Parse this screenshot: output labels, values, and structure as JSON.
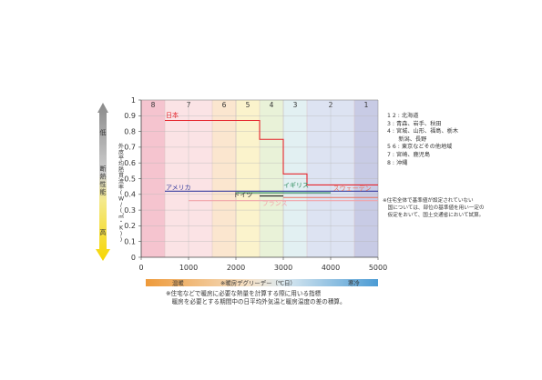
{
  "chart_data": {
    "type": "line",
    "title": "",
    "ylabel": "外皮平均熱貫流率(W/(㎡・K))",
    "y_axis_side_label_top": "低",
    "y_axis_side_label_mid": "断熱性能",
    "y_axis_side_label_bottom": "高",
    "xlabel": "※暖房デグリーデー（℃日）",
    "x_left_label": "温暖",
    "x_right_label": "寒冷",
    "xlim": [
      0,
      5000
    ],
    "ylim": [
      0,
      1
    ],
    "x_ticks": [
      "0",
      "1000",
      "2000",
      "3000",
      "4000",
      "5000"
    ],
    "y_ticks": [
      "0",
      "0.1",
      "0.2",
      "0.3",
      "0.4",
      "0.5",
      "0.6",
      "0.7",
      "0.8",
      "0.9",
      "1"
    ],
    "zones": [
      {
        "label": "8",
        "x0": 0,
        "x1": 500,
        "color": "#f5c4cf"
      },
      {
        "label": "7",
        "x0": 500,
        "x1": 1500,
        "color": "#fbe3e5"
      },
      {
        "label": "6",
        "x0": 1500,
        "x1": 2000,
        "color": "#fbe6cf"
      },
      {
        "label": "5",
        "x0": 2000,
        "x1": 2500,
        "color": "#fbf3cc"
      },
      {
        "label": "4",
        "x0": 2500,
        "x1": 3000,
        "color": "#e9f2d8"
      },
      {
        "label": "3",
        "x0": 3000,
        "x1": 3500,
        "color": "#e2f0f2"
      },
      {
        "label": "2",
        "x0": 3500,
        "x1": 4500,
        "color": "#dde3f2"
      },
      {
        "label": "1",
        "x0": 4500,
        "x1": 5000,
        "color": "#c8cbe5"
      }
    ],
    "series": [
      {
        "name": "日本",
        "color": "#e6242c",
        "points": [
          [
            500,
            0.87
          ],
          [
            2500,
            0.87
          ],
          [
            2500,
            0.75
          ],
          [
            3000,
            0.75
          ],
          [
            3000,
            0.53
          ],
          [
            3500,
            0.53
          ],
          [
            3500,
            0.46
          ],
          [
            5000,
            0.46
          ]
        ],
        "label_x": 520,
        "label_y": 0.895
      },
      {
        "name": "アメリカ",
        "color": "#3a3fa0",
        "points": [
          [
            500,
            0.42
          ],
          [
            5000,
            0.42
          ]
        ],
        "label_x": 520,
        "label_y": 0.435
      },
      {
        "name": "ドイツ",
        "color": "#222222",
        "points": [
          [
            2500,
            0.39
          ],
          [
            3000,
            0.39
          ]
        ],
        "label_x": 1950,
        "label_y": 0.39
      },
      {
        "name": "イギリス",
        "color": "#2a8a5a",
        "points": [
          [
            2000,
            0.41
          ],
          [
            4000,
            0.41
          ]
        ],
        "label_x": 3000,
        "label_y": 0.45
      },
      {
        "name": "スウェーデン",
        "color": "#e8705e",
        "points": [
          [
            3000,
            0.38
          ],
          [
            5000,
            0.38
          ]
        ],
        "label_x": 4050,
        "label_y": 0.43
      },
      {
        "name": "フランス",
        "color": "#f2a3a8",
        "points": [
          [
            1000,
            0.36
          ],
          [
            5000,
            0.36
          ]
        ],
        "label_x": 2550,
        "label_y": 0.335
      }
    ],
    "grid": true,
    "legend": "right"
  },
  "legend_lines": [
    "1 2 : 北海道",
    "3 : 青森、岩手、秋田",
    "4 : 宮城、山形、福島、栃木",
    "　　新潟、長野",
    "5 6 : 東京などその他地域",
    "7 : 宮崎、鹿児島",
    "8 : 沖縄"
  ],
  "note_lines": [
    "※住宅全体で基準値が設定されていない",
    "　国については、部位の基準値を用い一定の",
    "　仮定をおいて、国土交通省において試算。"
  ],
  "footnote_lines": [
    "※住宅などで暖房に必要な熱量を計算する際に用いる指標",
    "　暖房を必要とする期間中の日平均外気温と暖房温度の差の積算。"
  ]
}
